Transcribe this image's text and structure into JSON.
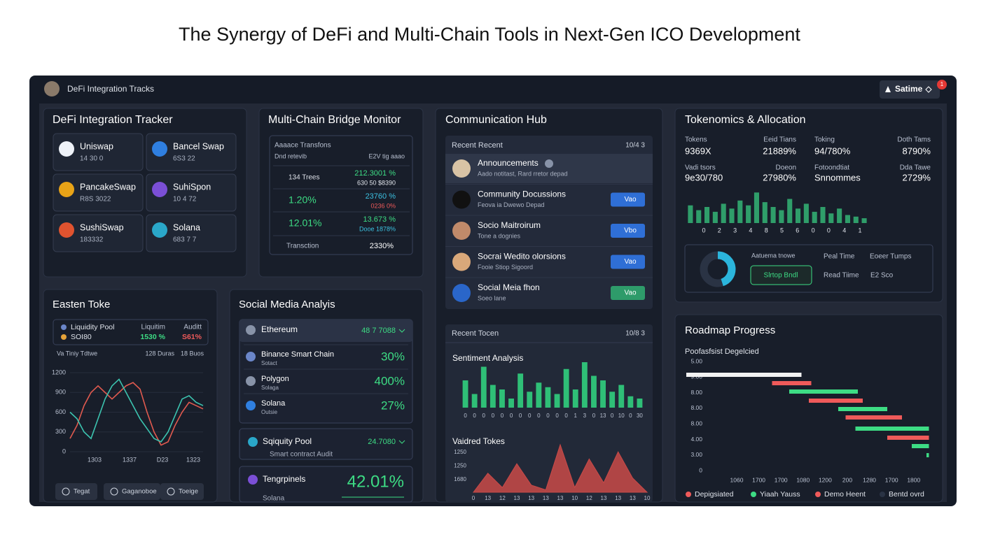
{
  "title": "The Synergy of DeFi and Multi-Chain Tools in Next-Gen ICO Development",
  "topbar": {
    "label": "DeFi Integration Tracks",
    "user": "Satime",
    "badge": "1"
  },
  "defi_tracker": {
    "title": "DeFi Integration Tracker",
    "tokens": [
      {
        "name": "Uniswap",
        "sub": "14 30 0",
        "color": "#eef2f8"
      },
      {
        "name": "Bancel Swap",
        "sub": "6S3 22",
        "color": "#2f7fe0"
      },
      {
        "name": "PancakeSwap",
        "sub": "R8S 3022",
        "color": "#e8a317"
      },
      {
        "name": "SuhiSpon",
        "sub": "10 4 72",
        "color": "#7b4fd6"
      },
      {
        "name": "SushiSwap",
        "sub": "183332",
        "color": "#e0532f"
      },
      {
        "name": "Solana",
        "sub": "683 7 7",
        "color": "#2aa7c9"
      }
    ]
  },
  "bridge": {
    "title": "Multi-Chain Bridge Monitor",
    "heading": "Aaaace Transfons",
    "columns": [
      "Dnd retevib",
      "E2V tig aaao"
    ],
    "rows": [
      [
        "134 Trees",
        "212.3001 %",
        "630 50 $8390"
      ],
      [
        "1.20%",
        "23760 %",
        "0236 0%"
      ],
      [
        "12.01%",
        "13.673 %",
        "Dooe 1878%"
      ]
    ],
    "footer": [
      "Transction",
      "2330%"
    ]
  },
  "comm": {
    "title": "Communication Hub",
    "list": {
      "heading": "Recent Recent",
      "count": "10/4 3",
      "items": [
        {
          "name": "Announcements",
          "sub": "Aado notitast, Rard rretor depad"
        },
        {
          "name": "Community Docussions",
          "sub": "Feova ia Dwewo Depad",
          "tag": "Vao",
          "tag_color": "#2f6fd6"
        },
        {
          "name": "Socio Maitroirum",
          "sub": "Tone a dognies",
          "tag": "Vbo",
          "tag_color": "#2f6fd6"
        },
        {
          "name": "Socrai Wedito olorsions",
          "sub": "Fooie Stiop Sigoord",
          "tag": "Vao",
          "tag_color": "#2f6fd6"
        },
        {
          "name": "Social Meia fhon",
          "sub": "Soeo lane",
          "tag": "Vao",
          "tag_color": "#2e9b6a"
        }
      ]
    },
    "recent": {
      "heading": "Recent Tocen",
      "count": "10/8 3"
    },
    "sentiment": {
      "title": "Sentiment Analysis",
      "color": "#2fbf77",
      "ylim": [
        0,
        100
      ],
      "values": [
        60,
        30,
        90,
        50,
        40,
        20,
        75,
        35,
        55,
        45,
        30,
        85,
        40,
        100,
        70,
        60,
        35,
        50,
        25,
        20
      ],
      "categories": [
        "0",
        "0",
        "0",
        "0",
        "0",
        "0",
        "0",
        "0",
        "0",
        "0",
        "0",
        "0",
        "1",
        "3",
        "0",
        "13",
        "0",
        "10",
        "0",
        "30"
      ]
    },
    "varied": {
      "title": "Vaidred Tokes",
      "color": "#c94a48",
      "ylim": [
        0,
        100
      ],
      "ylabels": [
        "1250",
        "1250",
        "1680"
      ],
      "values": [
        0,
        40,
        10,
        60,
        15,
        5,
        100,
        10,
        70,
        20,
        85,
        30,
        0
      ],
      "categories": [
        "0",
        "13",
        "12",
        "13",
        "13",
        "13",
        "13",
        "10",
        "12",
        "13",
        "13",
        "13",
        "10"
      ]
    }
  },
  "tokenomics": {
    "title": "Tokenomics & Allocation",
    "stats": [
      {
        "label": "Tokens",
        "value": "9369X"
      },
      {
        "label": "Eeid Tians",
        "value": "21889%"
      },
      {
        "label": "Toking",
        "value": "94/780%"
      },
      {
        "label": "Doth Tams",
        "value": "8790%"
      },
      {
        "label": "Vadi tsors",
        "value": "9e30/780"
      },
      {
        "label": "Doeon",
        "value": "27980%"
      },
      {
        "label": "Fotoondtiat",
        "value": "Snnommes"
      },
      {
        "label": "Dda Tawe",
        "value": "2729%"
      }
    ],
    "bars": {
      "color": "#2f9e6a",
      "ylim": [
        0,
        100
      ],
      "values": [
        55,
        40,
        50,
        35,
        60,
        45,
        70,
        55,
        95,
        65,
        50,
        40,
        75,
        45,
        60,
        35,
        50,
        30,
        45,
        25,
        20,
        15
      ],
      "labels": [
        "0",
        "2",
        "3",
        "4",
        "8",
        "5",
        "6",
        "0",
        "0",
        "4",
        "1"
      ]
    },
    "donut": {
      "values": [
        45,
        55
      ],
      "colors": [
        "#2bb5dc",
        "#2a3344"
      ]
    },
    "legend": {
      "label": "Aatuema tnowe",
      "button": "Slrtop Bndl",
      "items": [
        "Peal Time",
        "Eoeer Tumps",
        "Read Tiime",
        "E2 Sco"
      ]
    }
  },
  "easten": {
    "title": "Easten Toke",
    "legend": [
      {
        "name": "Liquidity Pool",
        "color": "#6b86c9"
      },
      {
        "name": "SOI80",
        "color": "#e5a33a"
      }
    ],
    "stats": [
      {
        "label": "Liquitim",
        "value": "1530 %",
        "color": "#3ddc84"
      },
      {
        "label": "Auditt",
        "value": "S61%",
        "color": "#ef5a5a"
      }
    ],
    "subrow": [
      "Va Tiniy Tdtwe",
      "128 Duras",
      "18 Buos"
    ],
    "chart": {
      "ylim": [
        0,
        1200
      ],
      "yticks": [
        0,
        300,
        600,
        900,
        1200
      ],
      "xlabels": [
        "1303",
        "1337",
        "D23",
        "1323"
      ],
      "series": [
        {
          "color": "#e05a4f",
          "values": [
            200,
            400,
            700,
            900,
            1000,
            900,
            800,
            900,
            1000,
            1050,
            950,
            600,
            300,
            100,
            150,
            400,
            600,
            750,
            700,
            650
          ]
        },
        {
          "color": "#3cc4b0",
          "values": [
            600,
            500,
            300,
            200,
            500,
            800,
            1000,
            1100,
            900,
            700,
            500,
            350,
            200,
            150,
            300,
            550,
            800,
            850,
            750,
            700
          ]
        }
      ]
    },
    "buttons": [
      "Tegat",
      "Gaganoboe",
      "Toeige"
    ]
  },
  "social": {
    "title": "Social Media Analyis",
    "chains": [
      {
        "name": "Ethereum",
        "value": "48 7 7088"
      },
      {
        "name": "Binance Smart Chain",
        "sub": "Sotact",
        "value": "30%"
      },
      {
        "name": "Polygon",
        "sub": "Solaga",
        "value": "400%"
      },
      {
        "name": "Solana",
        "sub": "Outsie",
        "value": "27%"
      }
    ],
    "pool": {
      "name": "Sqiquity Pool",
      "value": "24.7080",
      "sub": "Smart contract Audit"
    },
    "token": {
      "name": "Tengrpinels",
      "value": "42.01%",
      "sub": "Solana"
    }
  },
  "roadmap": {
    "title": "Roadmap Progress",
    "subtitle": "Poofasfsist Degelcied",
    "ylabels": [
      "5.00",
      "9.00",
      "8.00",
      "8.00",
      "8.00",
      "4.00",
      "3.00",
      "0"
    ],
    "xlabels": [
      "1060",
      "1700",
      "1700",
      "1080",
      "1200",
      "200",
      "1280",
      "1700",
      "1800"
    ],
    "xlim": [
      0,
      100
    ],
    "tasks": [
      {
        "start": 0,
        "end": 47,
        "color": "#f2f2f2"
      },
      {
        "start": 35,
        "end": 51,
        "color": "#ef5a5a"
      },
      {
        "start": 42,
        "end": 70,
        "color": "#3ddc84"
      },
      {
        "start": 50,
        "end": 72,
        "color": "#ef5a5a"
      },
      {
        "start": 62,
        "end": 82,
        "color": "#3ddc84"
      },
      {
        "start": 65,
        "end": 88,
        "color": "#ef5a5a"
      },
      {
        "start": 69,
        "end": 99,
        "color": "#3ddc84"
      },
      {
        "start": 82,
        "end": 99,
        "color": "#ef5a5a"
      },
      {
        "start": 92,
        "end": 99,
        "color": "#3ddc84"
      },
      {
        "start": 98,
        "end": 99,
        "color": "#3ddc84"
      }
    ],
    "legend": [
      {
        "name": "Depigsiated",
        "color": "#ef5a5a"
      },
      {
        "name": "Yiaah Yauss",
        "color": "#3ddc84"
      },
      {
        "name": "Demo Heent",
        "color": "#ef5a5a"
      },
      {
        "name": "Bentd ovrd",
        "color": "#2a3344"
      }
    ]
  }
}
